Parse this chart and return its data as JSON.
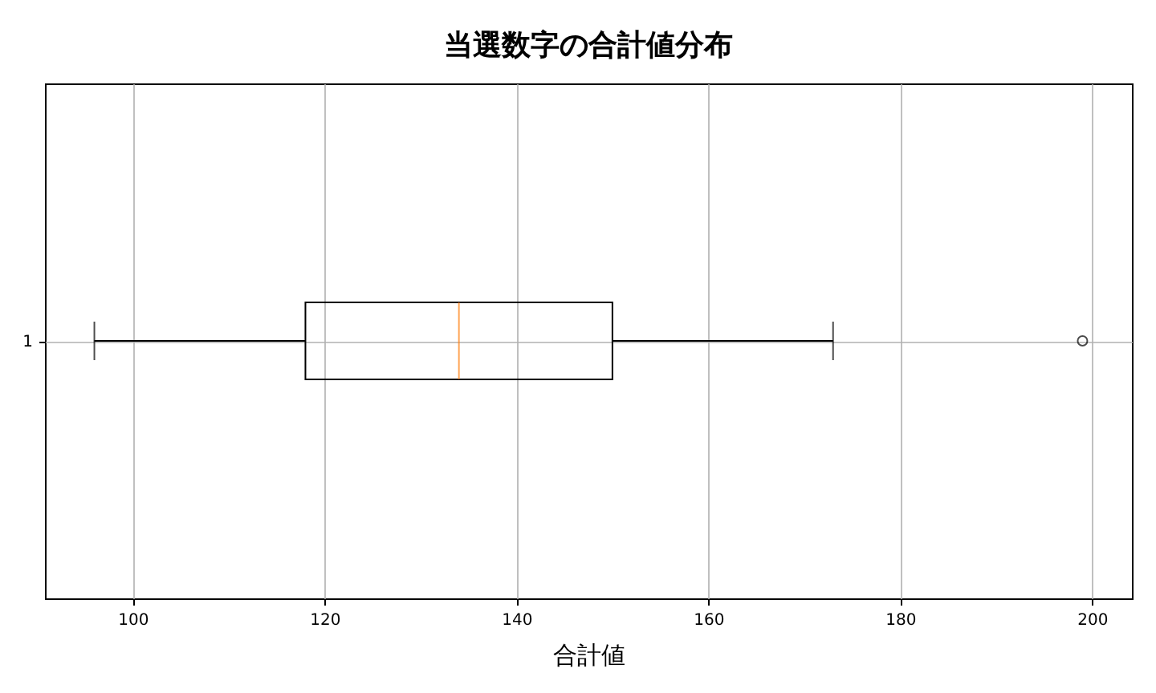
{
  "chart_data": {
    "type": "box",
    "title": "当選数字の合計値分布",
    "xlabel": "合計値",
    "orientation": "horizontal",
    "categories": [
      "1"
    ],
    "boxes": [
      {
        "low": 96,
        "q1": 118,
        "median": 134,
        "q3": 150,
        "high": 173,
        "outliers": [
          199
        ]
      }
    ],
    "xlim": [
      90.85,
      204.15
    ],
    "xticks": [
      100,
      120,
      140,
      160,
      180,
      200
    ],
    "grid": true
  }
}
